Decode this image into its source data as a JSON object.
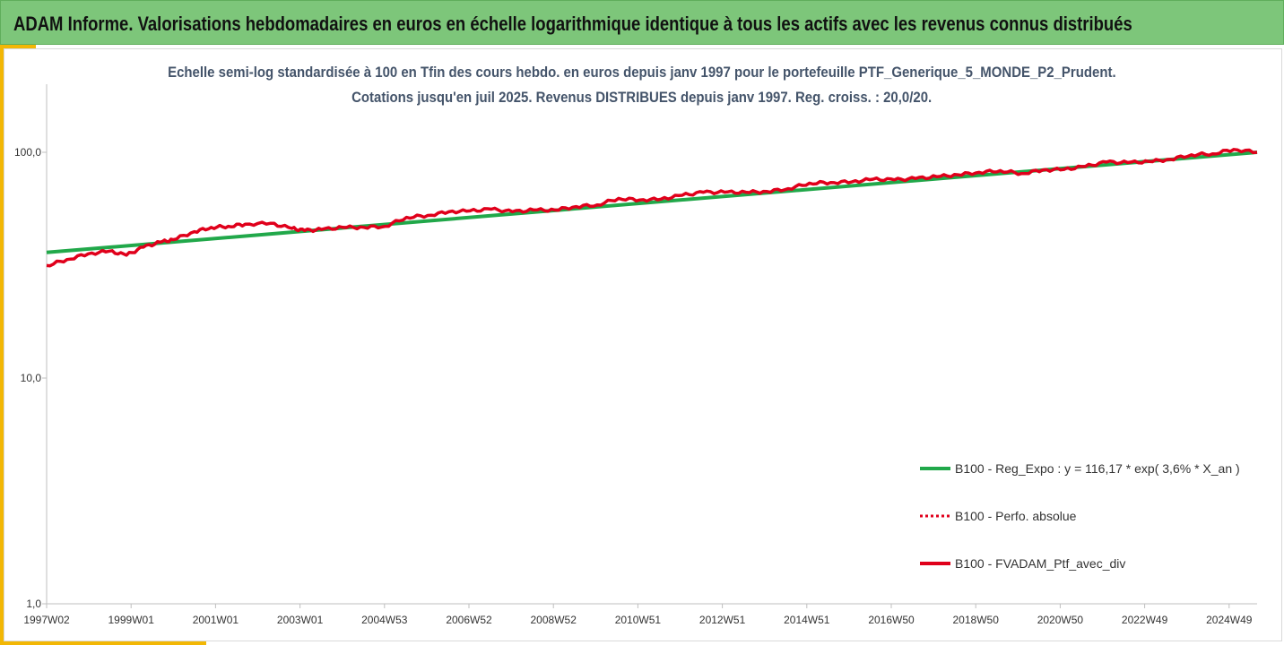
{
  "header": {
    "title": "ADAM Informe. Valorisations hebdomadaires en euros en échelle logarithmique identique à tous les actifs avec les revenus connus distribués"
  },
  "colors": {
    "header_bg": "#7dc67a",
    "accent": "#f2b705",
    "regression": "#21a84a",
    "perf": "#e0001b",
    "portfolio": "#e0001b"
  },
  "chart_data": {
    "type": "line",
    "title": "Echelle semi-log standardisée  à 100 en Tfin des cours hebdo.  en euros depuis janv 1997 pour le portefeuille PTF_Generique_5_MONDE_P2_Prudent.",
    "subtitle": "Cotations  jusqu'en juil 2025. Revenus DISTRIBUES depuis janv 1997. Reg. croiss. : 20,0/20.",
    "y_scale": "log",
    "ylim": [
      1,
      200
    ],
    "y_ticks": [
      "100,0",
      "10,0",
      "1,0"
    ],
    "x_range": [
      1997.02,
      2025.55
    ],
    "x_tick_labels": [
      "1997W02",
      "1999W01",
      "2001W01",
      "2003W01",
      "2004W53",
      "2006W52",
      "2008W52",
      "2010W51",
      "2012W51",
      "2014W51",
      "2016W50",
      "2018W50",
      "2020W50",
      "2022W49",
      "2024W49"
    ],
    "grid": false,
    "legend_position": "right",
    "series": [
      {
        "name": "B100 - Reg_Expo : y = 116,17 * exp( 3,6% *  X_an )",
        "style": "solid-green",
        "x": [
          1997.02,
          2025.55
        ],
        "y": [
          36.0,
          100.0
        ]
      },
      {
        "name": "B100 - Perfo. absolue",
        "style": "dotted-red",
        "x": [],
        "y": []
      },
      {
        "name": "B100 - FVADAM_Ptf_avec_div",
        "style": "solid-red",
        "x": [
          1997.02,
          1997.5,
          1998.0,
          1998.5,
          1998.9,
          1999.3,
          1999.7,
          2000.0,
          2000.5,
          2000.9,
          2001.3,
          2001.7,
          2002.3,
          2002.8,
          2003.1,
          2003.5,
          2004.0,
          2004.5,
          2005.0,
          2005.5,
          2006.0,
          2006.5,
          2007.0,
          2007.5,
          2008.0,
          2008.5,
          2009.0,
          2009.5,
          2010.0,
          2010.5,
          2011.0,
          2011.5,
          2012.0,
          2012.5,
          2013.0,
          2013.5,
          2014.0,
          2014.5,
          2015.0,
          2015.5,
          2016.0,
          2016.5,
          2017.0,
          2017.5,
          2018.0,
          2018.5,
          2019.0,
          2019.5,
          2020.0,
          2020.5,
          2021.0,
          2021.5,
          2022.0,
          2022.5,
          2023.0,
          2023.5,
          2024.0,
          2024.5,
          2025.0,
          2025.55
        ],
        "y": [
          31.5,
          33.5,
          35.5,
          36.5,
          35.0,
          38.0,
          40.0,
          41.0,
          44.5,
          46.5,
          47.0,
          48.0,
          48.5,
          46.0,
          45.0,
          45.5,
          46.5,
          46.5,
          47.0,
          51.5,
          52.5,
          54.5,
          55.0,
          56.0,
          54.5,
          55.5,
          55.5,
          57.5,
          58.5,
          62.5,
          61.5,
          62.0,
          64.5,
          66.5,
          66.5,
          66.5,
          67.0,
          69.0,
          73.0,
          73.5,
          74.0,
          76.0,
          75.5,
          76.5,
          78.0,
          79.5,
          81.5,
          83.0,
          80.5,
          83.5,
          84.0,
          86.5,
          90.5,
          90.0,
          91.0,
          93.0,
          97.5,
          98.5,
          103.0,
          100.0
        ]
      }
    ]
  }
}
